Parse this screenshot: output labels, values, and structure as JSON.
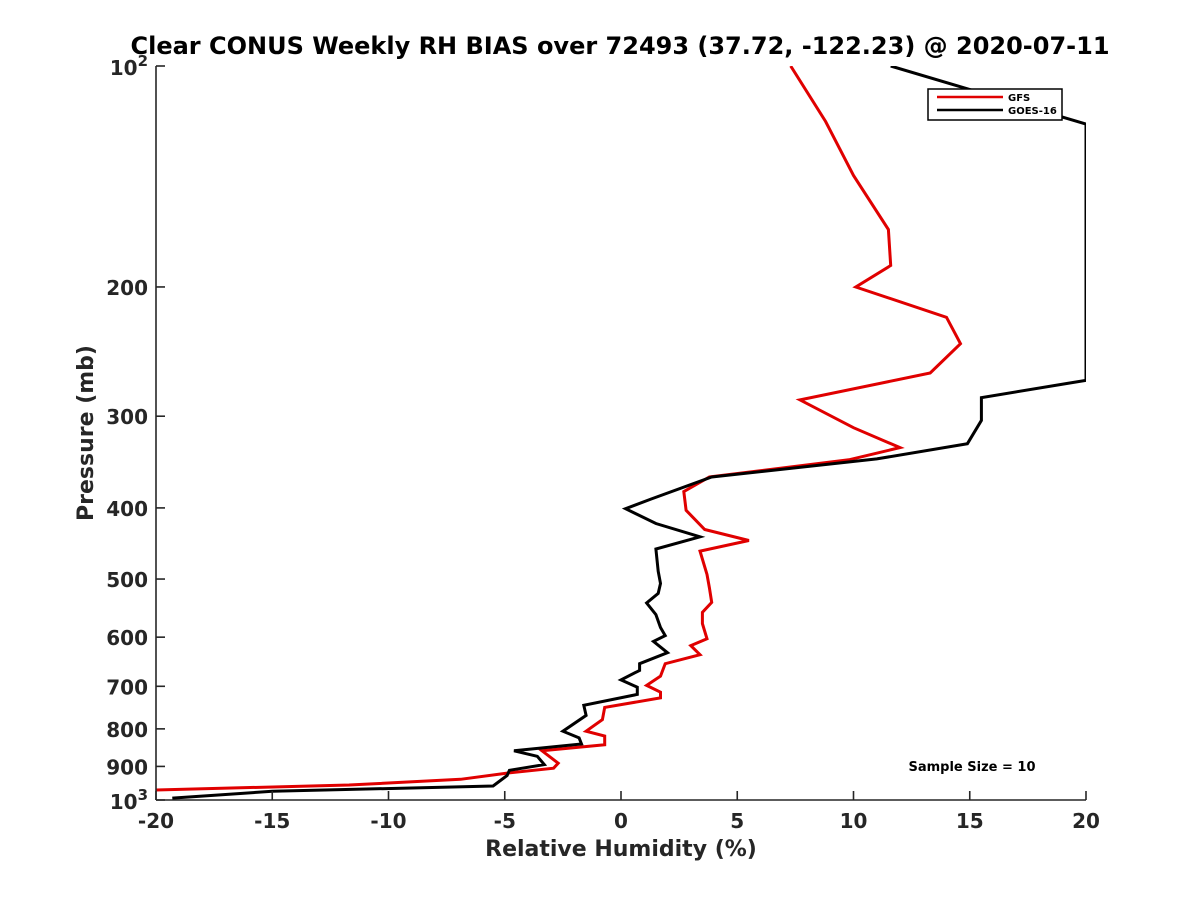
{
  "chart_data": {
    "type": "line",
    "title": "Clear CONUS Weekly RH BIAS over 72493 (37.72, -122.23) @ 2020-07-11",
    "xlabel": "Relative Humidity (%)",
    "ylabel": "Pressure (mb)",
    "xlim": [
      -20,
      20
    ],
    "ylim": [
      1000,
      100
    ],
    "y_scale": "log",
    "y_reversed": true,
    "grid": false,
    "legend_position": "top-right",
    "x_ticks": [
      -20,
      -15,
      -10,
      -5,
      0,
      5,
      10,
      15,
      20
    ],
    "x_tick_labels": [
      "-20",
      "-15",
      "-10",
      "-5",
      "0",
      "5",
      "10",
      "15",
      "20"
    ],
    "y_ticks": [
      100,
      200,
      300,
      400,
      500,
      600,
      700,
      800,
      900,
      1000
    ],
    "y_tick_labels": [
      "10²",
      "200",
      "300",
      "400",
      "500",
      "600",
      "700",
      "800",
      "900",
      "10³"
    ],
    "annotation": "Sample Size = 10",
    "series": [
      {
        "name": "GFS",
        "color": "#e00000",
        "points": [
          [
            7.3,
            100
          ],
          [
            8.8,
            119
          ],
          [
            10.0,
            141
          ],
          [
            11.5,
            167
          ],
          [
            11.6,
            187
          ],
          [
            10.1,
            200
          ],
          [
            14.0,
            220
          ],
          [
            14.6,
            239
          ],
          [
            13.3,
            262
          ],
          [
            7.7,
            285
          ],
          [
            10.0,
            311
          ],
          [
            12.0,
            331
          ],
          [
            9.8,
            344
          ],
          [
            3.8,
            363
          ],
          [
            2.7,
            380
          ],
          [
            2.8,
            403
          ],
          [
            3.6,
            428
          ],
          [
            5.5,
            443
          ],
          [
            3.4,
            458
          ],
          [
            3.7,
            493
          ],
          [
            3.8,
            514
          ],
          [
            3.9,
            538
          ],
          [
            3.5,
            555
          ],
          [
            3.5,
            575
          ],
          [
            3.7,
            603
          ],
          [
            3.0,
            616
          ],
          [
            3.4,
            634
          ],
          [
            1.9,
            652
          ],
          [
            1.7,
            678
          ],
          [
            1.1,
            698
          ],
          [
            1.7,
            713
          ],
          [
            1.7,
            726
          ],
          [
            -0.7,
            748
          ],
          [
            -0.8,
            777
          ],
          [
            -1.5,
            806
          ],
          [
            -0.7,
            818
          ],
          [
            -0.7,
            841
          ],
          [
            -3.4,
            857
          ],
          [
            -2.7,
            891
          ],
          [
            -2.9,
            905
          ],
          [
            -4.9,
            919
          ],
          [
            -6.9,
            937
          ],
          [
            -11.7,
            954
          ],
          [
            -20.0,
            969
          ]
        ]
      },
      {
        "name": "GOES-16",
        "color": "#000000",
        "points": [
          [
            11.6,
            100
          ],
          [
            20.0,
            120
          ],
          [
            20.0,
            268
          ],
          [
            15.5,
            283
          ],
          [
            15.5,
            304
          ],
          [
            14.9,
            327
          ],
          [
            11.0,
            343
          ],
          [
            3.9,
            363
          ],
          [
            1.3,
            389
          ],
          [
            0.2,
            401
          ],
          [
            1.5,
            420
          ],
          [
            3.4,
            438
          ],
          [
            1.5,
            455
          ],
          [
            1.6,
            488
          ],
          [
            1.7,
            507
          ],
          [
            1.6,
            523
          ],
          [
            1.1,
            539
          ],
          [
            1.5,
            559
          ],
          [
            1.7,
            582
          ],
          [
            1.9,
            597
          ],
          [
            1.4,
            608
          ],
          [
            2.0,
            630
          ],
          [
            0.8,
            652
          ],
          [
            0.8,
            666
          ],
          [
            0.0,
            686
          ],
          [
            0.7,
            702
          ],
          [
            0.7,
            718
          ],
          [
            -1.6,
            743
          ],
          [
            -1.5,
            767
          ],
          [
            -2.5,
            806
          ],
          [
            -1.8,
            823
          ],
          [
            -1.7,
            839
          ],
          [
            -4.6,
            857
          ],
          [
            -3.6,
            872
          ],
          [
            -3.3,
            895
          ],
          [
            -4.8,
            911
          ],
          [
            -4.9,
            926
          ],
          [
            -5.5,
            957
          ],
          [
            -15.0,
            973
          ],
          [
            -19.3,
            994
          ]
        ]
      }
    ]
  }
}
